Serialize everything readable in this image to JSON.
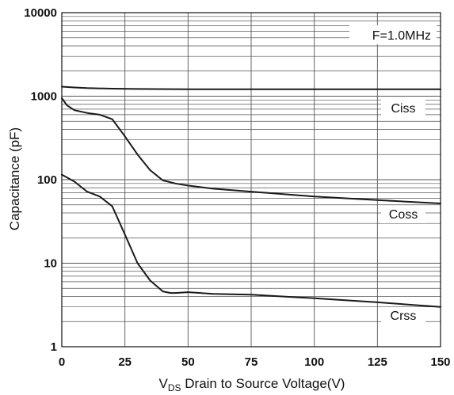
{
  "chart_data": {
    "type": "line",
    "title": "",
    "xlabel_prefix": "V",
    "xlabel_subscript": "DS",
    "xlabel_rest": " Drain to Source Voltage(V)",
    "ylabel": "Capacitance (pF)",
    "x_ticks": [
      0,
      25,
      50,
      75,
      100,
      125,
      150
    ],
    "y_ticks": [
      1,
      10,
      100,
      1000,
      10000
    ],
    "y_tick_labels": [
      "1",
      "10",
      "100",
      "1000",
      "10000"
    ],
    "x_tick_labels": [
      "0",
      "25",
      "50",
      "75",
      "100",
      "125",
      "150"
    ],
    "xlim": [
      0,
      150
    ],
    "ylim": [
      1,
      10000
    ],
    "y_scale": "log",
    "grid": true,
    "annotation": "F=1.0MHz",
    "series": [
      {
        "name": "Ciss",
        "x": [
          0,
          5,
          10,
          20,
          30,
          50,
          75,
          100,
          125,
          150
        ],
        "y": [
          1300,
          1270,
          1250,
          1230,
          1220,
          1210,
          1210,
          1210,
          1210,
          1210
        ]
      },
      {
        "name": "Coss",
        "x": [
          0,
          2,
          5,
          10,
          15,
          20,
          25,
          30,
          35,
          40,
          45,
          50,
          60,
          75,
          100,
          125,
          150
        ],
        "y": [
          950,
          780,
          680,
          630,
          600,
          530,
          330,
          200,
          130,
          98,
          90,
          85,
          78,
          72,
          63,
          57,
          52
        ]
      },
      {
        "name": "Crss",
        "x": [
          0,
          5,
          10,
          15,
          20,
          25,
          30,
          35,
          40,
          43,
          45,
          50,
          60,
          75,
          100,
          125,
          150
        ],
        "y": [
          115,
          95,
          72,
          63,
          48,
          22,
          10,
          6.2,
          4.6,
          4.4,
          4.4,
          4.5,
          4.3,
          4.2,
          3.8,
          3.4,
          3.0
        ]
      }
    ],
    "colors": {
      "line": "#1a1a1a",
      "grid": "#555555",
      "background": "#ffffff"
    }
  }
}
